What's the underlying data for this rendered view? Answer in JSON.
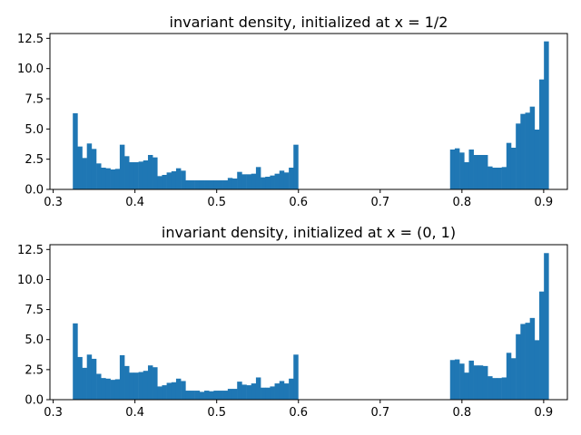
{
  "chart_data": [
    {
      "type": "bar",
      "title": "invariant density, initialized at x = 1/2",
      "xlabel": "",
      "ylabel": "",
      "xlim": [
        0.296,
        0.929
      ],
      "ylim": [
        0,
        12.9
      ],
      "grid": false,
      "bar_color": "#1f77b4",
      "x_ticks": [
        0.3,
        0.4,
        0.5,
        0.6,
        0.7,
        0.8,
        0.9
      ],
      "x_tick_labels": [
        "0.3",
        "0.4",
        "0.5",
        "0.6",
        "0.7",
        "0.8",
        "0.9"
      ],
      "y_ticks": [
        0,
        2.5,
        5,
        7.5,
        10,
        12.5
      ],
      "y_tick_labels": [
        "0.0",
        "2.5",
        "5.0",
        "7.5",
        "10.0",
        "12.5"
      ],
      "bin_width": 0.00574,
      "bins": [
        {
          "x": 0.324,
          "y": 6.3
        },
        {
          "x": 0.3297,
          "y": 3.55
        },
        {
          "x": 0.3354,
          "y": 2.6
        },
        {
          "x": 0.3412,
          "y": 3.8
        },
        {
          "x": 0.3469,
          "y": 3.35
        },
        {
          "x": 0.3527,
          "y": 2.15
        },
        {
          "x": 0.3584,
          "y": 1.8
        },
        {
          "x": 0.3642,
          "y": 1.75
        },
        {
          "x": 0.3699,
          "y": 1.65
        },
        {
          "x": 0.3757,
          "y": 1.7
        },
        {
          "x": 0.3814,
          "y": 3.7
        },
        {
          "x": 0.3871,
          "y": 2.75
        },
        {
          "x": 0.3929,
          "y": 2.25
        },
        {
          "x": 0.3986,
          "y": 2.25
        },
        {
          "x": 0.4044,
          "y": 2.3
        },
        {
          "x": 0.4101,
          "y": 2.4
        },
        {
          "x": 0.4159,
          "y": 2.85
        },
        {
          "x": 0.4216,
          "y": 2.65
        },
        {
          "x": 0.4273,
          "y": 1.1
        },
        {
          "x": 0.4331,
          "y": 1.2
        },
        {
          "x": 0.4388,
          "y": 1.4
        },
        {
          "x": 0.4446,
          "y": 1.5
        },
        {
          "x": 0.4503,
          "y": 1.75
        },
        {
          "x": 0.4561,
          "y": 1.55
        },
        {
          "x": 0.4618,
          "y": 0.75
        },
        {
          "x": 0.4675,
          "y": 0.75
        },
        {
          "x": 0.4733,
          "y": 0.75
        },
        {
          "x": 0.479,
          "y": 0.75
        },
        {
          "x": 0.4848,
          "y": 0.75
        },
        {
          "x": 0.4905,
          "y": 0.75
        },
        {
          "x": 0.4963,
          "y": 0.75
        },
        {
          "x": 0.502,
          "y": 0.75
        },
        {
          "x": 0.5078,
          "y": 0.75
        },
        {
          "x": 0.5135,
          "y": 0.95
        },
        {
          "x": 0.5192,
          "y": 0.9
        },
        {
          "x": 0.525,
          "y": 1.45
        },
        {
          "x": 0.5307,
          "y": 1.25
        },
        {
          "x": 0.5365,
          "y": 1.25
        },
        {
          "x": 0.5422,
          "y": 1.3
        },
        {
          "x": 0.548,
          "y": 1.85
        },
        {
          "x": 0.5537,
          "y": 1.0
        },
        {
          "x": 0.5594,
          "y": 1.05
        },
        {
          "x": 0.5652,
          "y": 1.15
        },
        {
          "x": 0.5709,
          "y": 1.3
        },
        {
          "x": 0.5767,
          "y": 1.55
        },
        {
          "x": 0.5824,
          "y": 1.4
        },
        {
          "x": 0.5882,
          "y": 1.8
        },
        {
          "x": 0.5939,
          "y": 3.7
        },
        {
          "x": 0.7855,
          "y": 3.3
        },
        {
          "x": 0.7912,
          "y": 3.4
        },
        {
          "x": 0.797,
          "y": 3.05
        },
        {
          "x": 0.8027,
          "y": 2.25
        },
        {
          "x": 0.8085,
          "y": 3.3
        },
        {
          "x": 0.8142,
          "y": 2.85
        },
        {
          "x": 0.8199,
          "y": 2.85
        },
        {
          "x": 0.8257,
          "y": 2.85
        },
        {
          "x": 0.8314,
          "y": 1.9
        },
        {
          "x": 0.8372,
          "y": 1.8
        },
        {
          "x": 0.8429,
          "y": 1.8
        },
        {
          "x": 0.8487,
          "y": 1.85
        },
        {
          "x": 0.8544,
          "y": 3.85
        },
        {
          "x": 0.8601,
          "y": 3.45
        },
        {
          "x": 0.8659,
          "y": 5.45
        },
        {
          "x": 0.8716,
          "y": 6.25
        },
        {
          "x": 0.8774,
          "y": 6.35
        },
        {
          "x": 0.8831,
          "y": 6.85
        },
        {
          "x": 0.8889,
          "y": 4.95
        },
        {
          "x": 0.8946,
          "y": 9.1
        },
        {
          "x": 0.9003,
          "y": 12.25
        }
      ]
    },
    {
      "type": "bar",
      "title": "invariant density, initialized at x = (0, 1)",
      "xlabel": "",
      "ylabel": "",
      "xlim": [
        0.296,
        0.929
      ],
      "ylim": [
        0,
        12.9
      ],
      "grid": false,
      "bar_color": "#1f77b4",
      "x_ticks": [
        0.3,
        0.4,
        0.5,
        0.6,
        0.7,
        0.8,
        0.9
      ],
      "x_tick_labels": [
        "0.3",
        "0.4",
        "0.5",
        "0.6",
        "0.7",
        "0.8",
        "0.9"
      ],
      "y_ticks": [
        0,
        2.5,
        5,
        7.5,
        10,
        12.5
      ],
      "y_tick_labels": [
        "0.0",
        "2.5",
        "5.0",
        "7.5",
        "10.0",
        "12.5"
      ],
      "bin_width": 0.00574,
      "bins": [
        {
          "x": 0.324,
          "y": 6.35
        },
        {
          "x": 0.3297,
          "y": 3.55
        },
        {
          "x": 0.3354,
          "y": 2.65
        },
        {
          "x": 0.3412,
          "y": 3.75
        },
        {
          "x": 0.3469,
          "y": 3.4
        },
        {
          "x": 0.3527,
          "y": 2.15
        },
        {
          "x": 0.3584,
          "y": 1.8
        },
        {
          "x": 0.3642,
          "y": 1.75
        },
        {
          "x": 0.3699,
          "y": 1.65
        },
        {
          "x": 0.3757,
          "y": 1.7
        },
        {
          "x": 0.3814,
          "y": 3.7
        },
        {
          "x": 0.3871,
          "y": 2.8
        },
        {
          "x": 0.3929,
          "y": 2.25
        },
        {
          "x": 0.3986,
          "y": 2.25
        },
        {
          "x": 0.4044,
          "y": 2.3
        },
        {
          "x": 0.4101,
          "y": 2.4
        },
        {
          "x": 0.4159,
          "y": 2.85
        },
        {
          "x": 0.4216,
          "y": 2.7
        },
        {
          "x": 0.4273,
          "y": 1.1
        },
        {
          "x": 0.4331,
          "y": 1.2
        },
        {
          "x": 0.4388,
          "y": 1.4
        },
        {
          "x": 0.4446,
          "y": 1.45
        },
        {
          "x": 0.4503,
          "y": 1.75
        },
        {
          "x": 0.4561,
          "y": 1.55
        },
        {
          "x": 0.4618,
          "y": 0.75
        },
        {
          "x": 0.4675,
          "y": 0.75
        },
        {
          "x": 0.4733,
          "y": 0.75
        },
        {
          "x": 0.479,
          "y": 0.65
        },
        {
          "x": 0.4848,
          "y": 0.75
        },
        {
          "x": 0.4905,
          "y": 0.7
        },
        {
          "x": 0.4963,
          "y": 0.75
        },
        {
          "x": 0.502,
          "y": 0.75
        },
        {
          "x": 0.5078,
          "y": 0.75
        },
        {
          "x": 0.5135,
          "y": 0.9
        },
        {
          "x": 0.5192,
          "y": 0.9
        },
        {
          "x": 0.525,
          "y": 1.5
        },
        {
          "x": 0.5307,
          "y": 1.25
        },
        {
          "x": 0.5365,
          "y": 1.2
        },
        {
          "x": 0.5422,
          "y": 1.35
        },
        {
          "x": 0.548,
          "y": 1.85
        },
        {
          "x": 0.5537,
          "y": 1.0
        },
        {
          "x": 0.5594,
          "y": 1.0
        },
        {
          "x": 0.5652,
          "y": 1.1
        },
        {
          "x": 0.5709,
          "y": 1.35
        },
        {
          "x": 0.5767,
          "y": 1.55
        },
        {
          "x": 0.5824,
          "y": 1.35
        },
        {
          "x": 0.5882,
          "y": 1.75
        },
        {
          "x": 0.5939,
          "y": 3.75
        },
        {
          "x": 0.7855,
          "y": 3.3
        },
        {
          "x": 0.7912,
          "y": 3.35
        },
        {
          "x": 0.797,
          "y": 3.0
        },
        {
          "x": 0.8027,
          "y": 2.25
        },
        {
          "x": 0.8085,
          "y": 3.25
        },
        {
          "x": 0.8142,
          "y": 2.85
        },
        {
          "x": 0.8199,
          "y": 2.85
        },
        {
          "x": 0.8257,
          "y": 2.8
        },
        {
          "x": 0.8314,
          "y": 1.95
        },
        {
          "x": 0.8372,
          "y": 1.8
        },
        {
          "x": 0.8429,
          "y": 1.8
        },
        {
          "x": 0.8487,
          "y": 1.85
        },
        {
          "x": 0.8544,
          "y": 3.9
        },
        {
          "x": 0.8601,
          "y": 3.45
        },
        {
          "x": 0.8659,
          "y": 5.45
        },
        {
          "x": 0.8716,
          "y": 6.3
        },
        {
          "x": 0.8774,
          "y": 6.4
        },
        {
          "x": 0.8831,
          "y": 6.8
        },
        {
          "x": 0.8889,
          "y": 4.95
        },
        {
          "x": 0.8946,
          "y": 9.0
        },
        {
          "x": 0.9003,
          "y": 12.2
        }
      ]
    }
  ]
}
